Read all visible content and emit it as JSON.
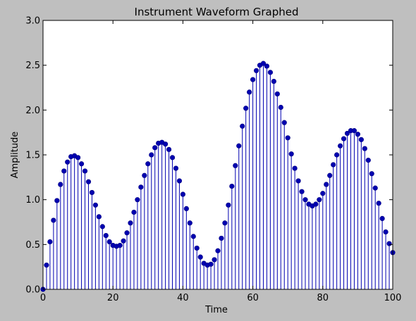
{
  "chart_data": {
    "type": "stem",
    "title": "Instrument Waveform Graphed",
    "xlabel": "Time",
    "ylabel": "Amplitude",
    "xlim": [
      0,
      100
    ],
    "ylim": [
      0,
      3.0
    ],
    "xticks": [
      "0",
      "20",
      "40",
      "60",
      "80",
      "100"
    ],
    "yticks": [
      "0.0",
      "0.5",
      "1.0",
      "1.5",
      "2.0",
      "2.5",
      "3.0"
    ],
    "grid": false,
    "color": "#0000b0",
    "x": [
      0,
      1,
      2,
      3,
      4,
      5,
      6,
      7,
      8,
      9,
      10,
      11,
      12,
      13,
      14,
      15,
      16,
      17,
      18,
      19,
      20,
      21,
      22,
      23,
      24,
      25,
      26,
      27,
      28,
      29,
      30,
      31,
      32,
      33,
      34,
      35,
      36,
      37,
      38,
      39,
      40,
      41,
      42,
      43,
      44,
      45,
      46,
      47,
      48,
      49,
      50,
      51,
      52,
      53,
      54,
      55,
      56,
      57,
      58,
      59,
      60,
      61,
      62,
      63,
      64,
      65,
      66,
      67,
      68,
      69,
      70,
      71,
      72,
      73,
      74,
      75,
      76,
      77,
      78,
      79,
      80,
      81,
      82,
      83,
      84,
      85,
      86,
      87,
      88,
      89,
      90,
      91,
      92,
      93,
      94,
      95,
      96,
      97,
      98,
      99,
      100
    ],
    "y": [
      0.0,
      0.27,
      0.53,
      0.77,
      0.99,
      1.17,
      1.32,
      1.42,
      1.48,
      1.49,
      1.47,
      1.4,
      1.32,
      1.2,
      1.08,
      0.94,
      0.81,
      0.7,
      0.6,
      0.53,
      0.49,
      0.48,
      0.49,
      0.54,
      0.63,
      0.74,
      0.86,
      1.0,
      1.14,
      1.27,
      1.4,
      1.5,
      1.58,
      1.63,
      1.64,
      1.62,
      1.56,
      1.47,
      1.35,
      1.21,
      1.06,
      0.9,
      0.74,
      0.59,
      0.46,
      0.36,
      0.29,
      0.27,
      0.28,
      0.33,
      0.43,
      0.57,
      0.74,
      0.94,
      1.15,
      1.38,
      1.6,
      1.82,
      2.02,
      2.2,
      2.34,
      2.44,
      2.5,
      2.52,
      2.49,
      2.42,
      2.32,
      2.18,
      2.03,
      1.86,
      1.69,
      1.51,
      1.35,
      1.21,
      1.09,
      1.0,
      0.95,
      0.93,
      0.95,
      1.0,
      1.07,
      1.17,
      1.27,
      1.39,
      1.5,
      1.6,
      1.68,
      1.74,
      1.77,
      1.77,
      1.73,
      1.67,
      1.57,
      1.44,
      1.29,
      1.13,
      0.96,
      0.79,
      0.64,
      0.51,
      0.41
    ]
  }
}
